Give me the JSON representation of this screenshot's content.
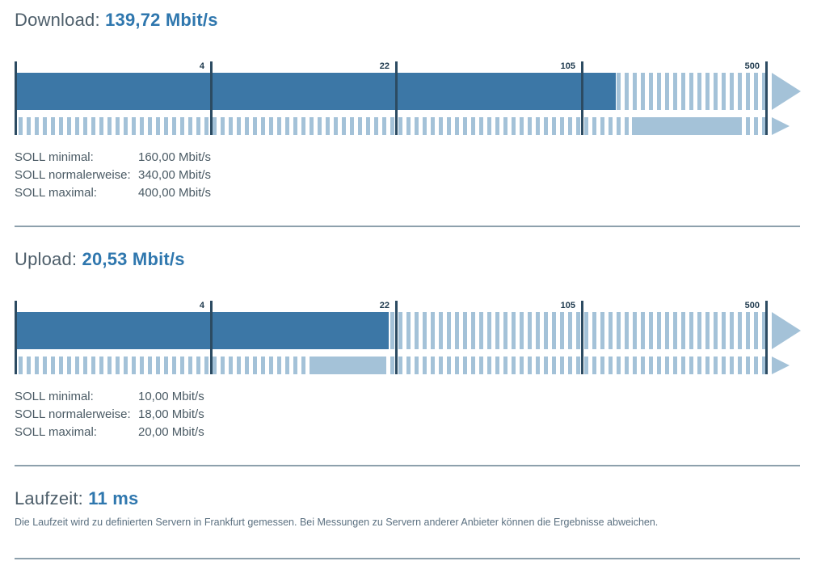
{
  "download": {
    "title_label": "Download:",
    "value_text": "139,72 Mbit/s",
    "soll": [
      {
        "label": "SOLL minimal:",
        "value": "160,00 Mbit/s"
      },
      {
        "label": "SOLL normalerweise:",
        "value": "340,00 Mbit/s"
      },
      {
        "label": "SOLL maximal:",
        "value": "400,00 Mbit/s"
      }
    ]
  },
  "upload": {
    "title_label": "Upload:",
    "value_text": "20,53 Mbit/s",
    "soll": [
      {
        "label": "SOLL minimal:",
        "value": "10,00 Mbit/s"
      },
      {
        "label": "SOLL normalerweise:",
        "value": "18,00 Mbit/s"
      },
      {
        "label": "SOLL maximal:",
        "value": "20,00 Mbit/s"
      }
    ]
  },
  "laufzeit": {
    "title_label": "Laufzeit:",
    "value_text": "11 ms",
    "note": "Die Laufzeit wird zu definierten Servern in Frankfurt gemessen. Bei Messungen zu Servern anderer Anbieter können die Ergebnisse abweichen."
  },
  "colors": {
    "measured_bar_dark_blue": "#3c77a6",
    "expected_light_blue": "#a4c2d8",
    "tick_line_navy": "#2c4b62",
    "title_value_blue": "#2f77ae",
    "title_label_gray": "#4d5e6a",
    "divider_gray": "#8da0ac"
  },
  "chart_data": [
    {
      "type": "bar",
      "id": "download",
      "title": "Download: 139,72 Mbit/s",
      "unit": "Mbit/s",
      "axis_scale": "log",
      "axis_ticks": [
        4,
        22,
        105,
        500
      ],
      "measured": 139.72,
      "soll_minimal": 160.0,
      "soll_normalerweise": 340.0,
      "soll_maximal": 400.0
    },
    {
      "type": "bar",
      "id": "upload",
      "title": "Upload: 20,53 Mbit/s",
      "unit": "Mbit/s",
      "axis_scale": "log",
      "axis_ticks": [
        4,
        22,
        105,
        500
      ],
      "measured": 20.53,
      "soll_minimal": 10.0,
      "soll_normalerweise": 18.0,
      "soll_maximal": 20.0
    },
    {
      "type": "value",
      "id": "laufzeit",
      "title": "Laufzeit: 11 ms",
      "value_ms": 11
    }
  ]
}
